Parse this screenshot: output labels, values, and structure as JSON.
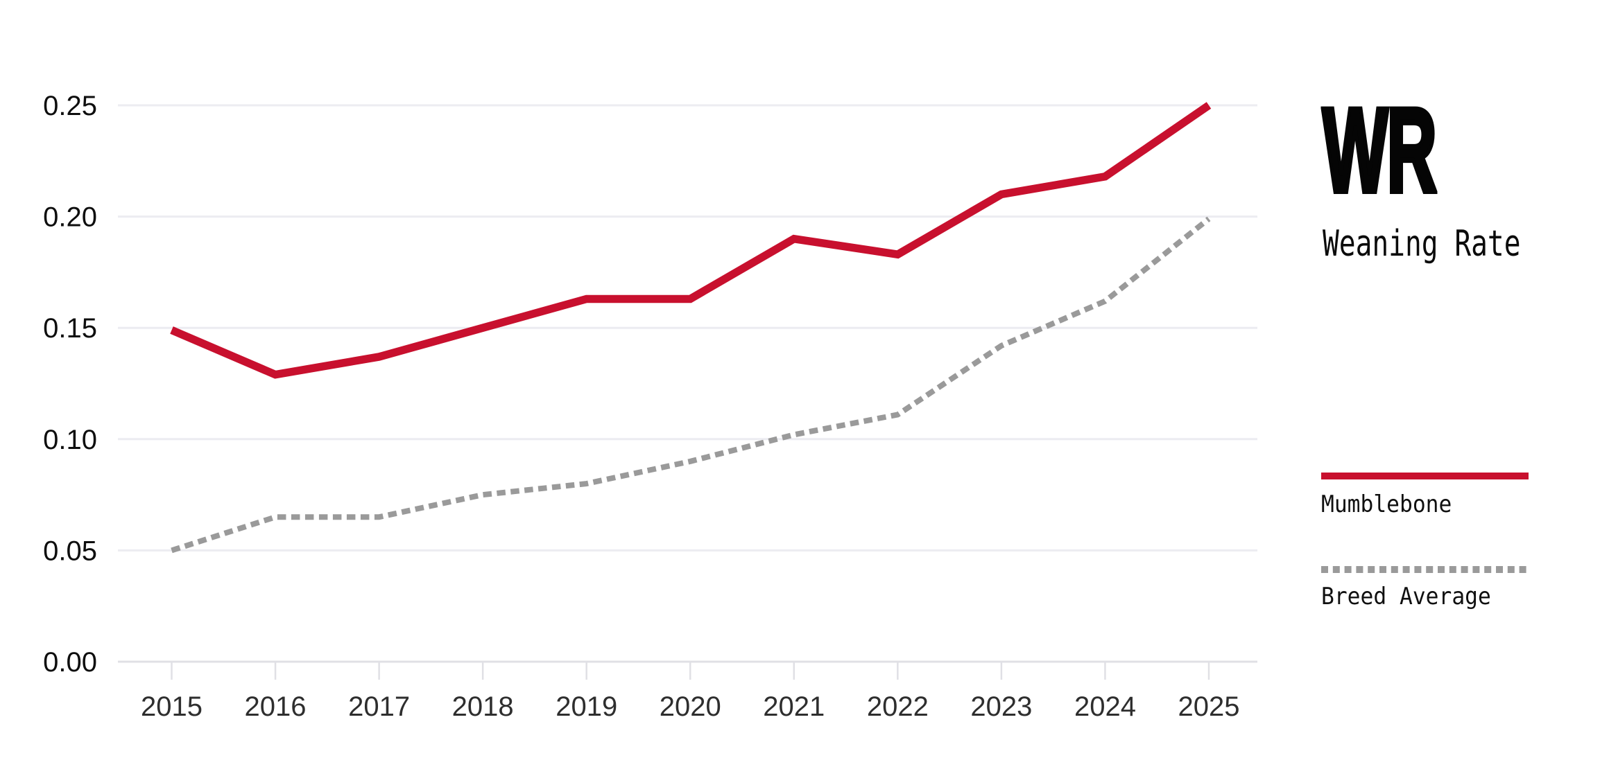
{
  "title": {
    "abbr": "WR",
    "name": "Weaning Rate"
  },
  "legend": [
    {
      "label": "Mumblebone",
      "style": "solid",
      "color": "#C8102E"
    },
    {
      "label": "Breed Average",
      "style": "dotted",
      "color": "#9A9A9A"
    }
  ],
  "chart_data": {
    "type": "line",
    "x": [
      2015,
      2016,
      2017,
      2018,
      2019,
      2020,
      2021,
      2022,
      2023,
      2024,
      2025
    ],
    "series": [
      {
        "name": "Mumblebone",
        "style": "solid",
        "color": "#C8102E",
        "values": [
          0.149,
          0.129,
          0.137,
          0.15,
          0.163,
          0.163,
          0.19,
          0.183,
          0.21,
          0.218,
          0.25
        ]
      },
      {
        "name": "Breed Average",
        "style": "dotted",
        "color": "#9A9A9A",
        "values": [
          0.05,
          0.065,
          0.065,
          0.075,
          0.08,
          0.09,
          0.102,
          0.111,
          0.142,
          0.162,
          0.199
        ]
      }
    ],
    "title": "WR — Weaning Rate",
    "xlabel": "",
    "ylabel": "",
    "ylim": [
      0,
      0.25
    ],
    "yticks": [
      0.0,
      0.05,
      0.1,
      0.15,
      0.2,
      0.25
    ],
    "ytick_labels": [
      "0.00",
      "0.05",
      "0.10",
      "0.15",
      "0.20",
      "0.25"
    ],
    "grid": true,
    "legend_position": "right"
  },
  "colors": {
    "background": "#FFFFFF",
    "grid": "#ECECF1",
    "axis": "#E0E0E5",
    "tick": "#E0E0E5",
    "ylabel_text": "#0E0E0E",
    "xlabel_text": "#2E2E2E"
  }
}
